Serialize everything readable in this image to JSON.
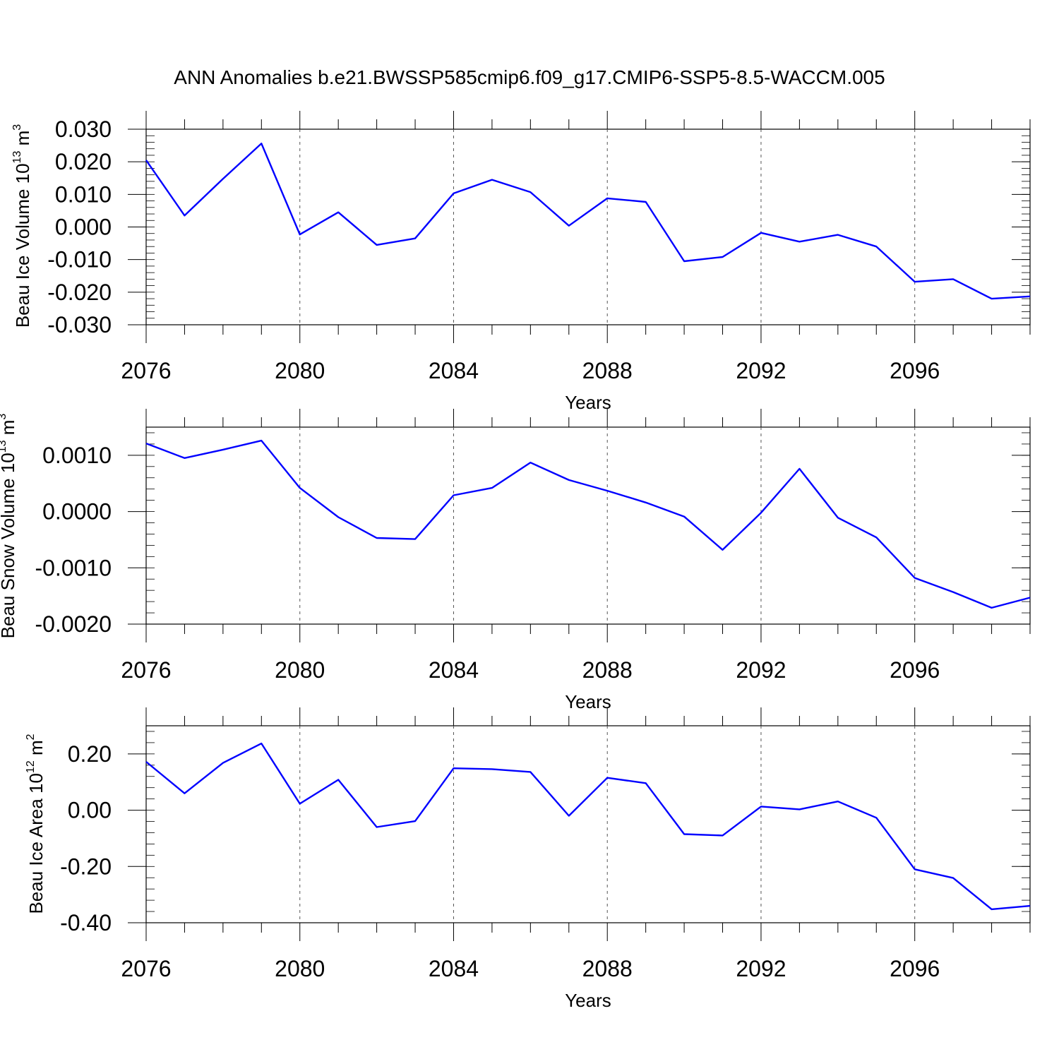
{
  "chart_data": {
    "title": "ANN Anomalies b.e21.BWSSP585cmip6.f09_g17.CMIP6-SSP5-8.5-WACCM.005",
    "line_color": "#0000ff",
    "grid": "dashed vertical lines at major x ticks",
    "panels": [
      {
        "type": "line",
        "xlabel": "Years",
        "ylabel": {
          "text": "Beau Ice Volume 10",
          "exp": "13",
          "unit": " m",
          "unit_exp": "3"
        },
        "xlim": [
          2076,
          2099
        ],
        "ylim": [
          -0.03,
          0.03
        ],
        "x_ticks": [
          "2076",
          "2080",
          "2084",
          "2088",
          "2092",
          "2096"
        ],
        "y_ticks": [
          "0.030",
          "0.020",
          "0.010",
          "0.000",
          "-0.010",
          "-0.020",
          "-0.030"
        ],
        "x": [
          2076,
          2077,
          2078,
          2079,
          2080,
          2081,
          2082,
          2083,
          2084,
          2085,
          2086,
          2087,
          2088,
          2089,
          2090,
          2091,
          2092,
          2093,
          2094,
          2095,
          2096,
          2097,
          2098,
          2099
        ],
        "y": [
          0.0205,
          0.0035,
          0.0148,
          0.0256,
          -0.0023,
          0.0045,
          -0.0055,
          -0.0035,
          0.0103,
          0.0145,
          0.0107,
          0.0004,
          0.0088,
          0.0077,
          -0.0105,
          -0.0092,
          -0.0018,
          -0.0045,
          -0.0024,
          -0.006,
          -0.0168,
          -0.016,
          -0.022,
          -0.0213
        ]
      },
      {
        "type": "line",
        "xlabel": "Years",
        "ylabel": {
          "text": "Beau Snow Volume 10",
          "exp": "13",
          "unit": " m",
          "unit_exp": "3"
        },
        "xlim": [
          2076,
          2099
        ],
        "ylim": [
          -0.002,
          0.0015
        ],
        "x_ticks": [
          "2076",
          "2080",
          "2084",
          "2088",
          "2092",
          "2096"
        ],
        "y_ticks": [
          "0.0010",
          "0.0000",
          "-0.0010",
          "-0.0020"
        ],
        "x": [
          2076,
          2077,
          2078,
          2079,
          2080,
          2081,
          2082,
          2083,
          2084,
          2085,
          2086,
          2087,
          2088,
          2089,
          2090,
          2091,
          2092,
          2093,
          2094,
          2095,
          2096,
          2097,
          2098,
          2099
        ],
        "y": [
          0.00121,
          0.00095,
          0.0011,
          0.00126,
          0.00042,
          -0.0001,
          -0.00047,
          -0.00049,
          0.00029,
          0.00042,
          0.00087,
          0.00056,
          0.00037,
          0.00016,
          -9e-05,
          -0.00068,
          -2e-05,
          0.00076,
          -0.00011,
          -0.00046,
          -0.00118,
          -0.00143,
          -0.00171,
          -0.00153
        ]
      },
      {
        "type": "line",
        "xlabel": "Years",
        "ylabel": {
          "text": "Beau Ice Area 10",
          "exp": "12",
          "unit": " m",
          "unit_exp": "2"
        },
        "xlim": [
          2076,
          2099
        ],
        "ylim": [
          -0.4,
          0.3
        ],
        "x_ticks": [
          "2076",
          "2080",
          "2084",
          "2088",
          "2092",
          "2096"
        ],
        "y_ticks": [
          "0.20",
          "0.00",
          "-0.20",
          "-0.40"
        ],
        "x": [
          2076,
          2077,
          2078,
          2079,
          2080,
          2081,
          2082,
          2083,
          2084,
          2085,
          2086,
          2087,
          2088,
          2089,
          2090,
          2091,
          2092,
          2093,
          2094,
          2095,
          2096,
          2097,
          2098,
          2099
        ],
        "y": [
          0.172,
          0.06,
          0.168,
          0.237,
          0.023,
          0.108,
          -0.06,
          -0.039,
          0.149,
          0.146,
          0.136,
          -0.02,
          0.115,
          0.096,
          -0.085,
          -0.09,
          0.013,
          0.003,
          0.031,
          -0.027,
          -0.21,
          -0.241,
          -0.352,
          -0.34
        ]
      }
    ]
  }
}
